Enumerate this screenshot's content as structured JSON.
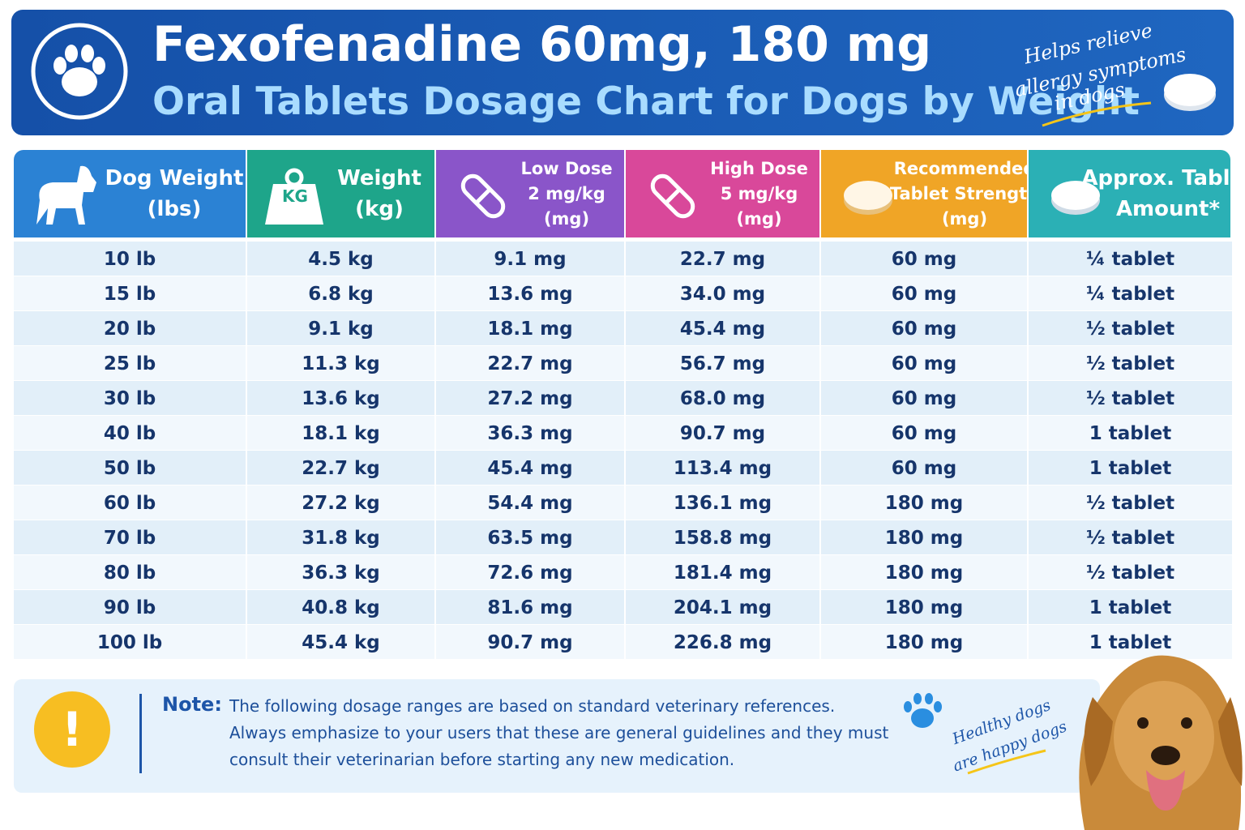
{
  "header": {
    "title": "Fexofenadine 60mg, 180 mg",
    "subtitle": "Oral Tablets Dosage Chart for Dogs by Weight",
    "tagline": [
      "Helps relieve",
      "allergy symptoms",
      "in dogs"
    ]
  },
  "table": {
    "columns": [
      [
        "Dog Weight",
        "(lbs)"
      ],
      [
        "Weight",
        "(kg)"
      ],
      [
        "Low Dose",
        "2 mg/kg",
        "(mg)"
      ],
      [
        "High Dose",
        "5 mg/kg",
        "(mg)"
      ],
      [
        "Recommended",
        "Tablet Strength",
        "(mg)"
      ],
      [
        "Approx. Tablet",
        "Amount*"
      ]
    ],
    "kg_icon": "KG",
    "rows": [
      [
        "10 lb",
        "4.5 kg",
        "9.1 mg",
        "22.7 mg",
        "60 mg",
        "¼ tablet"
      ],
      [
        "15 lb",
        "6.8 kg",
        "13.6 mg",
        "34.0 mg",
        "60 mg",
        "¼ tablet"
      ],
      [
        "20 lb",
        "9.1 kg",
        "18.1 mg",
        "45.4 mg",
        "60 mg",
        "½ tablet"
      ],
      [
        "25 lb",
        "11.3 kg",
        "22.7 mg",
        "56.7 mg",
        "60 mg",
        "½ tablet"
      ],
      [
        "30 lb",
        "13.6 kg",
        "27.2 mg",
        "68.0 mg",
        "60 mg",
        "½ tablet"
      ],
      [
        "40 lb",
        "18.1 kg",
        "36.3 mg",
        "90.7 mg",
        "60 mg",
        "1 tablet"
      ],
      [
        "50 lb",
        "22.7 kg",
        "45.4 mg",
        "113.4 mg",
        "60 mg",
        "1 tablet"
      ],
      [
        "60 lb",
        "27.2 kg",
        "54.4 mg",
        "136.1 mg",
        "180 mg",
        "½ tablet"
      ],
      [
        "70 lb",
        "31.8 kg",
        "63.5 mg",
        "158.8 mg",
        "180 mg",
        "½ tablet"
      ],
      [
        "80 lb",
        "36.3 kg",
        "72.6 mg",
        "181.4 mg",
        "180 mg",
        "½ tablet"
      ],
      [
        "90 lb",
        "40.8 kg",
        "81.6 mg",
        "204.1 mg",
        "180 mg",
        "1 tablet"
      ],
      [
        "100 lb",
        "45.4 kg",
        "90.7 mg",
        "226.8 mg",
        "180 mg",
        "1 tablet"
      ]
    ]
  },
  "note": {
    "icon": "!",
    "label": "Note:",
    "lines": [
      "The following dosage ranges are based on standard veterinary references.",
      "Always emphasize to your users that these are general guidelines and they must",
      "consult their veterinarian before starting any new medication."
    ]
  },
  "slogan": [
    "Healthy dogs",
    "are happy dogs"
  ]
}
